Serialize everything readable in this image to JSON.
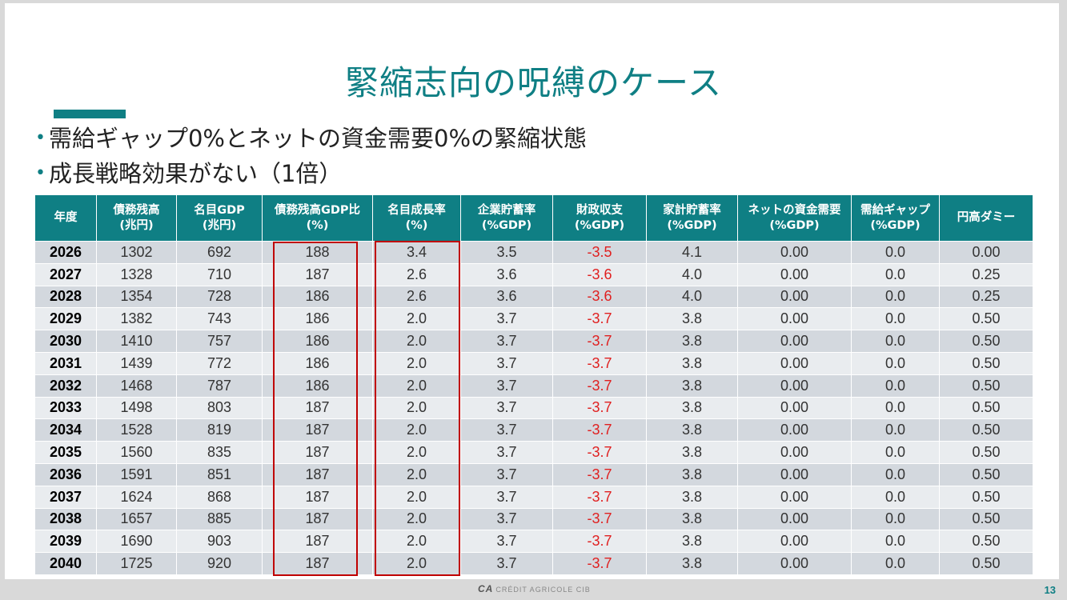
{
  "title": "緊縮志向の呪縛のケース",
  "bullets": [
    "需給ギャップ0%とネットの資金需要0%の緊縮状態",
    "成長戦略効果がない（1倍）"
  ],
  "table": {
    "headers": [
      [
        "年度",
        ""
      ],
      [
        "債務残高",
        "(兆円)"
      ],
      [
        "名目GDP",
        "(兆円)"
      ],
      [
        "債務残高GDP比",
        "(%)"
      ],
      [
        "名目成長率",
        "(%)"
      ],
      [
        "企業貯蓄率",
        "(%GDP)"
      ],
      [
        "財政収支",
        "(%GDP)"
      ],
      [
        "家計貯蓄率",
        "(%GDP)"
      ],
      [
        "ネットの資金需要",
        "(%GDP)"
      ],
      [
        "需給ギャップ",
        "(%GDP)"
      ],
      [
        "円高ダミー",
        ""
      ]
    ],
    "rows": [
      [
        "2026",
        "1302",
        "692",
        "188",
        "3.4",
        "3.5",
        "-3.5",
        "4.1",
        "0.00",
        "0.0",
        "0.00"
      ],
      [
        "2027",
        "1328",
        "710",
        "187",
        "2.6",
        "3.6",
        "-3.6",
        "4.0",
        "0.00",
        "0.0",
        "0.25"
      ],
      [
        "2028",
        "1354",
        "728",
        "186",
        "2.6",
        "3.6",
        "-3.6",
        "4.0",
        "0.00",
        "0.0",
        "0.25"
      ],
      [
        "2029",
        "1382",
        "743",
        "186",
        "2.0",
        "3.7",
        "-3.7",
        "3.8",
        "0.00",
        "0.0",
        "0.50"
      ],
      [
        "2030",
        "1410",
        "757",
        "186",
        "2.0",
        "3.7",
        "-3.7",
        "3.8",
        "0.00",
        "0.0",
        "0.50"
      ],
      [
        "2031",
        "1439",
        "772",
        "186",
        "2.0",
        "3.7",
        "-3.7",
        "3.8",
        "0.00",
        "0.0",
        "0.50"
      ],
      [
        "2032",
        "1468",
        "787",
        "186",
        "2.0",
        "3.7",
        "-3.7",
        "3.8",
        "0.00",
        "0.0",
        "0.50"
      ],
      [
        "2033",
        "1498",
        "803",
        "187",
        "2.0",
        "3.7",
        "-3.7",
        "3.8",
        "0.00",
        "0.0",
        "0.50"
      ],
      [
        "2034",
        "1528",
        "819",
        "187",
        "2.0",
        "3.7",
        "-3.7",
        "3.8",
        "0.00",
        "0.0",
        "0.50"
      ],
      [
        "2035",
        "1560",
        "835",
        "187",
        "2.0",
        "3.7",
        "-3.7",
        "3.8",
        "0.00",
        "0.0",
        "0.50"
      ],
      [
        "2036",
        "1591",
        "851",
        "187",
        "2.0",
        "3.7",
        "-3.7",
        "3.8",
        "0.00",
        "0.0",
        "0.50"
      ],
      [
        "2037",
        "1624",
        "868",
        "187",
        "2.0",
        "3.7",
        "-3.7",
        "3.8",
        "0.00",
        "0.0",
        "0.50"
      ],
      [
        "2038",
        "1657",
        "885",
        "187",
        "2.0",
        "3.7",
        "-3.7",
        "3.8",
        "0.00",
        "0.0",
        "0.50"
      ],
      [
        "2039",
        "1690",
        "903",
        "187",
        "2.0",
        "3.7",
        "-3.7",
        "3.8",
        "0.00",
        "0.0",
        "0.50"
      ],
      [
        "2040",
        "1725",
        "920",
        "187",
        "2.0",
        "3.7",
        "-3.7",
        "3.8",
        "0.00",
        "0.0",
        "0.50"
      ]
    ]
  },
  "footer": {
    "logo_mark": "CA",
    "logo_text": "CRÉDIT AGRICOLE CIB",
    "page_number": "13"
  },
  "colors": {
    "accent": "#0f7f84",
    "negative": "#e02020",
    "highlight_box": "#c00000"
  }
}
